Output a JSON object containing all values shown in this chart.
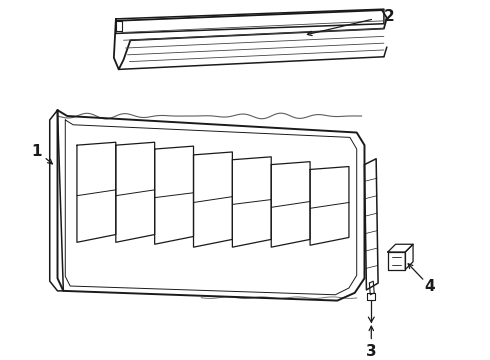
{
  "bg_color": "#ffffff",
  "line_color": "#1a1a1a",
  "line_width": 1.1,
  "label_1": "1",
  "label_2": "2",
  "label_3": "3",
  "label_4": "4",
  "label_fontsize": 11,
  "fig_width": 4.9,
  "fig_height": 3.6,
  "dpi": 100
}
